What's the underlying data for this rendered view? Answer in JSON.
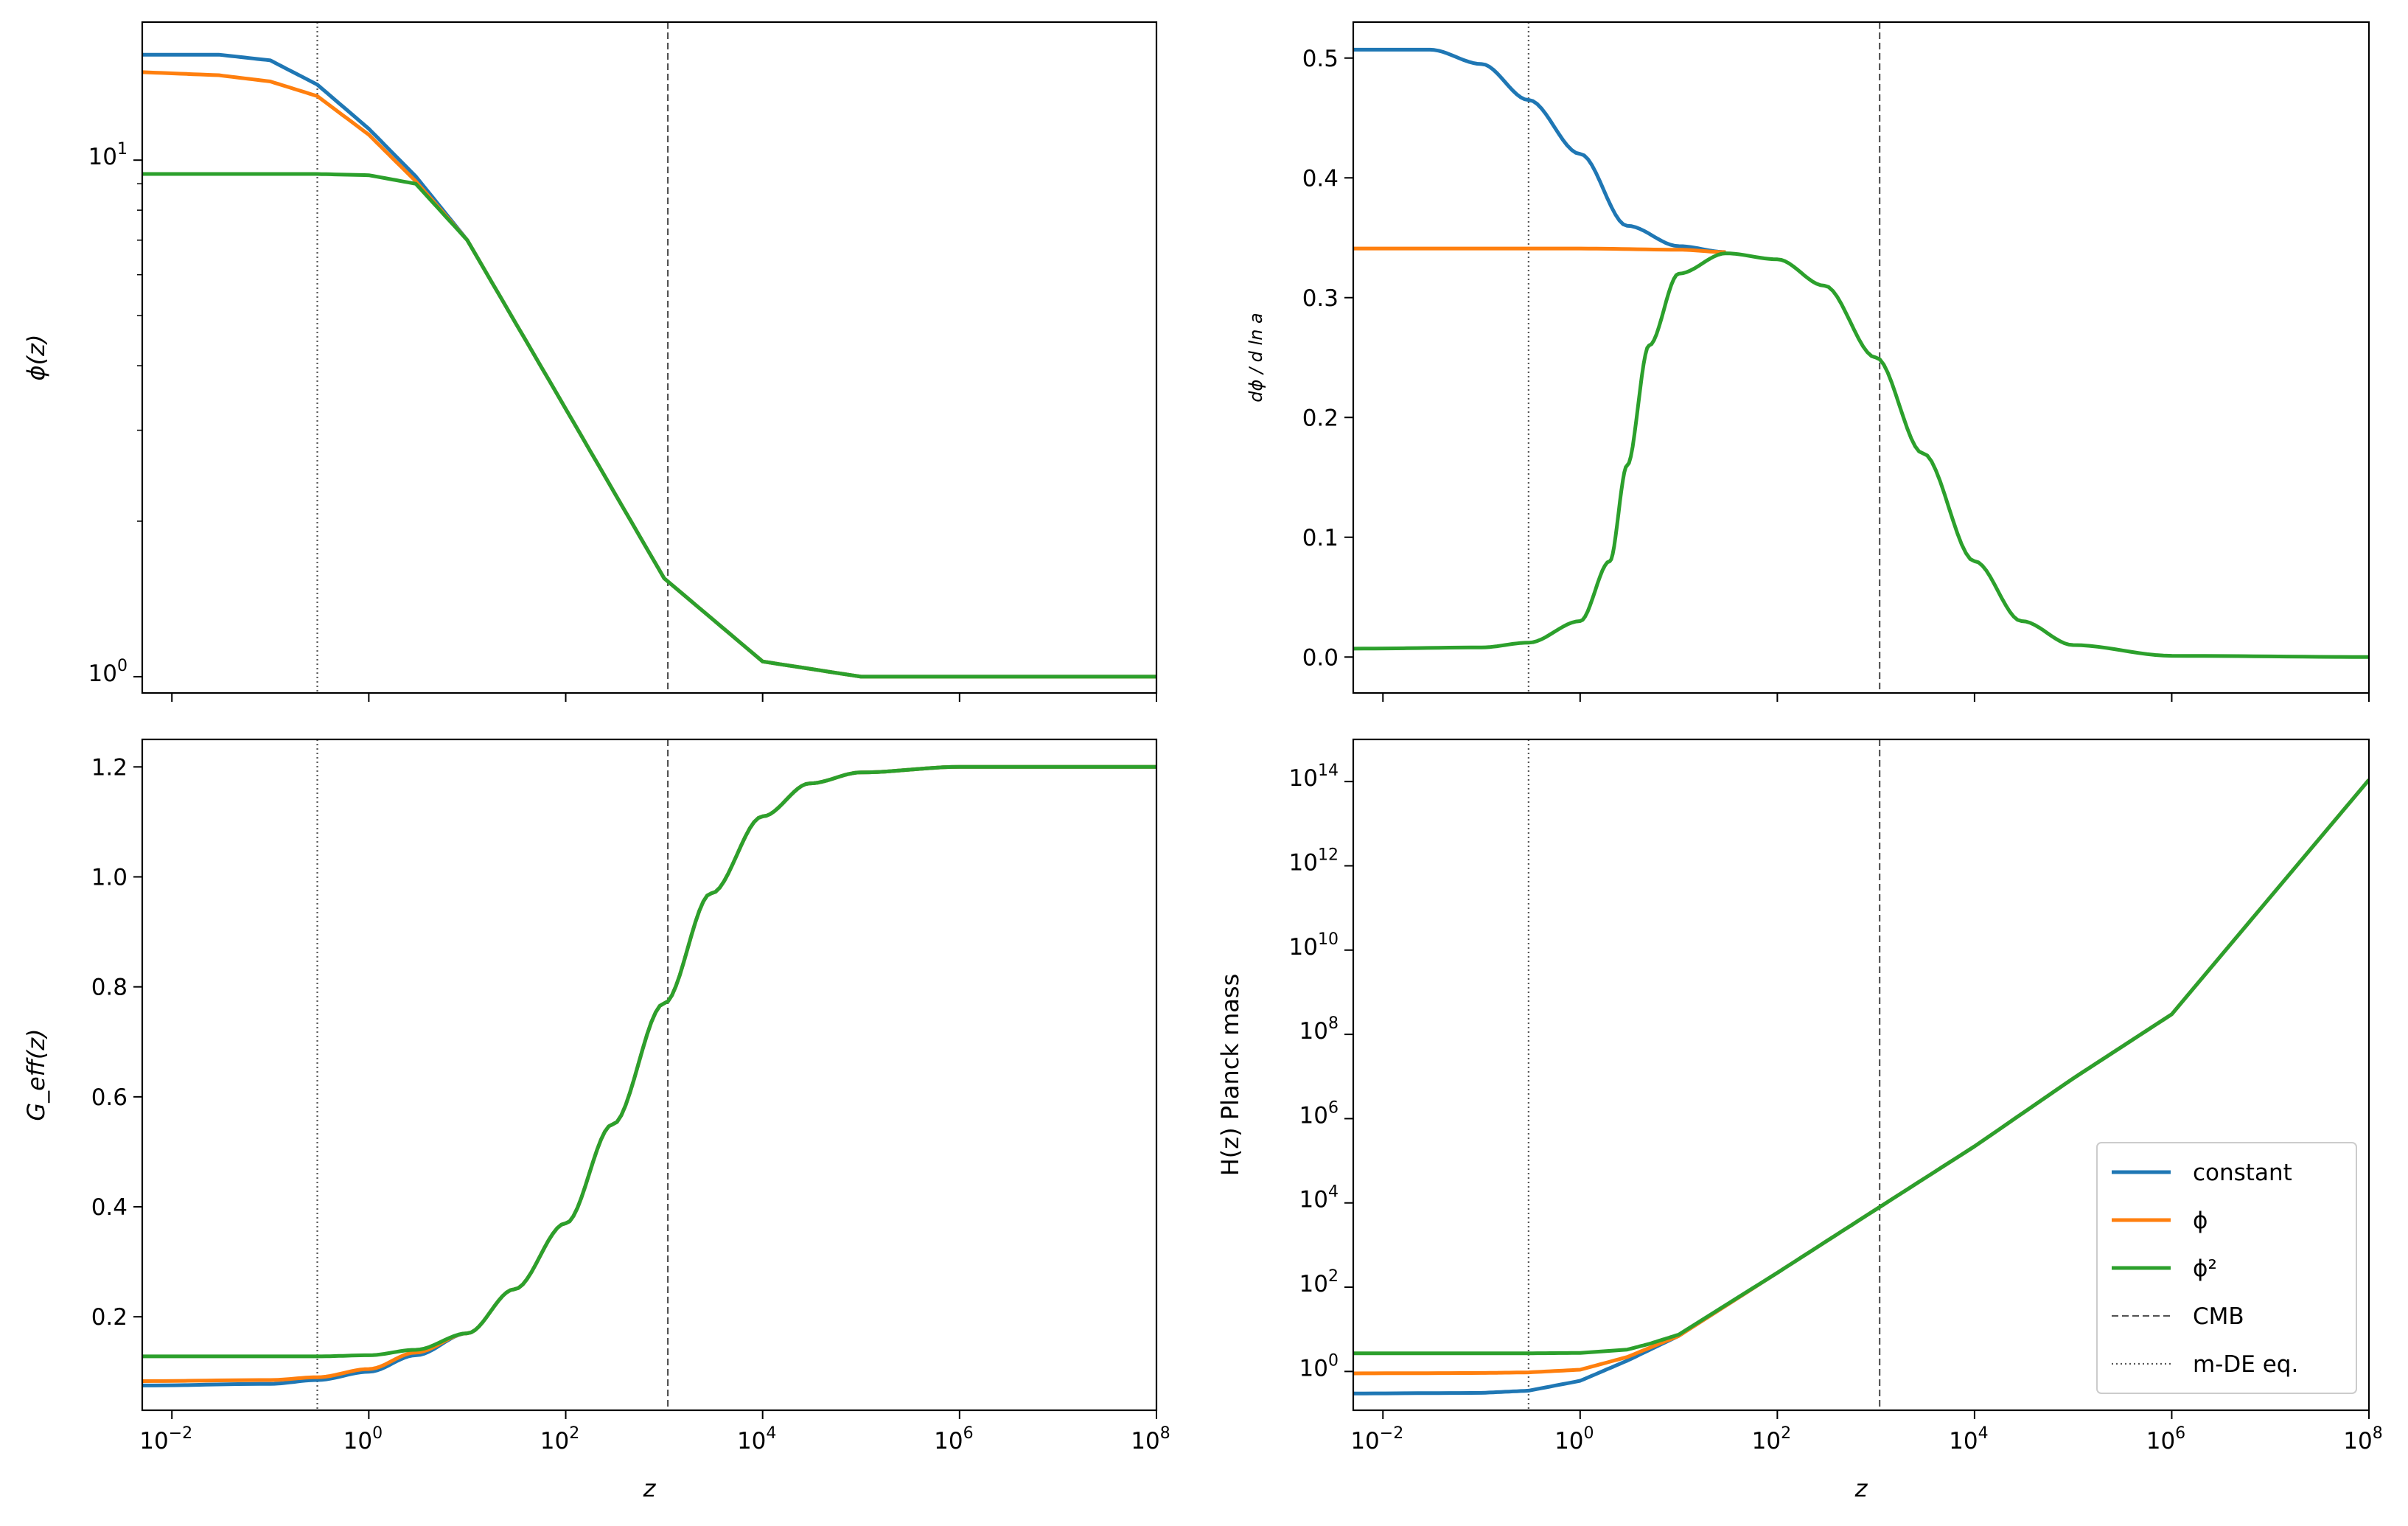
{
  "figure": {
    "xlabel": "z",
    "legend": {
      "placement": "lower right of bottom-right panel",
      "entries": [
        {
          "label": "constant",
          "style": "solid",
          "color": "#1f77b4"
        },
        {
          "label": "ϕ",
          "style": "solid",
          "color": "#ff7f0e"
        },
        {
          "label": "ϕ²",
          "style": "solid",
          "color": "#2ca02c"
        },
        {
          "label": "CMB",
          "style": "dashed",
          "color": "#555555"
        },
        {
          "label": "m-DE eq.",
          "style": "dotted",
          "color": "#555555"
        }
      ]
    },
    "reference_lines": [
      {
        "name": "CMB",
        "z": 1090,
        "style": "dashed"
      },
      {
        "name": "m-DE eq.",
        "z": 0.3,
        "style": "dotted"
      }
    ]
  },
  "chart_data": [
    {
      "id": "phi",
      "type": "line",
      "ylabel": "ϕ(z)",
      "xscale": "log",
      "yscale": "log",
      "xlim": [
        0.005,
        100000000
      ],
      "ylim": [
        0.93,
        18.5
      ],
      "xticks_shown": false,
      "yticks": [
        {
          "value": 1,
          "label": "10^0"
        },
        {
          "value": 10,
          "label": "10^1"
        }
      ],
      "series": [
        {
          "name": "constant",
          "color": "#1f77b4",
          "x": [
            0.005,
            0.03,
            0.1,
            0.3,
            1,
            3,
            10,
            100,
            1000,
            10000,
            100000,
            100000000
          ],
          "y": [
            16.0,
            16.0,
            15.6,
            14.0,
            11.5,
            9.3,
            7.0,
            3.3,
            1.55,
            1.07,
            1.0,
            1.0
          ]
        },
        {
          "name": "ϕ",
          "color": "#ff7f0e",
          "x": [
            0.005,
            0.03,
            0.1,
            0.3,
            1,
            3,
            10,
            100,
            1000,
            10000,
            100000,
            100000000
          ],
          "y": [
            14.8,
            14.6,
            14.2,
            13.3,
            11.2,
            9.1,
            7.0,
            3.3,
            1.55,
            1.07,
            1.0,
            1.0
          ]
        },
        {
          "name": "ϕ²",
          "color": "#2ca02c",
          "x": [
            0.005,
            0.1,
            0.3,
            1,
            3,
            10,
            100,
            1000,
            10000,
            100000,
            100000000
          ],
          "y": [
            9.4,
            9.4,
            9.4,
            9.35,
            9.0,
            7.0,
            3.3,
            1.55,
            1.07,
            1.0,
            1.0
          ]
        }
      ]
    },
    {
      "id": "dphi",
      "type": "line",
      "ylabel": "dϕ / d ln a",
      "xscale": "log",
      "yscale": "linear",
      "xlim": [
        0.005,
        100000000
      ],
      "ylim": [
        -0.03,
        0.53
      ],
      "xticks_shown": false,
      "yticks": [
        {
          "value": 0.0,
          "label": "0.0"
        },
        {
          "value": 0.1,
          "label": "0.1"
        },
        {
          "value": 0.2,
          "label": "0.2"
        },
        {
          "value": 0.3,
          "label": "0.3"
        },
        {
          "value": 0.4,
          "label": "0.4"
        },
        {
          "value": 0.5,
          "label": "0.5"
        }
      ],
      "series": [
        {
          "name": "constant",
          "color": "#1f77b4",
          "x": [
            0.005,
            0.03,
            0.1,
            0.3,
            1,
            3,
            10,
            30
          ],
          "y": [
            0.507,
            0.507,
            0.495,
            0.465,
            0.42,
            0.36,
            0.343,
            0.338
          ]
        },
        {
          "name": "ϕ",
          "color": "#ff7f0e",
          "x": [
            0.005,
            1,
            10,
            30
          ],
          "y": [
            0.341,
            0.341,
            0.34,
            0.338
          ]
        },
        {
          "name": "ϕ²",
          "color": "#2ca02c",
          "x": [
            0.005,
            0.1,
            0.3,
            1,
            2,
            3,
            5,
            10,
            30,
            100,
            300,
            1000,
            3000,
            10000,
            30000,
            100000,
            1000000,
            100000000
          ],
          "y": [
            0.007,
            0.008,
            0.012,
            0.03,
            0.08,
            0.16,
            0.26,
            0.32,
            0.337,
            0.332,
            0.31,
            0.25,
            0.17,
            0.08,
            0.03,
            0.01,
            0.001,
            0.0
          ]
        }
      ]
    },
    {
      "id": "geff",
      "type": "line",
      "ylabel": "G_eff(z)",
      "xscale": "log",
      "yscale": "linear",
      "xlim": [
        0.005,
        100000000
      ],
      "ylim": [
        0.03,
        1.25
      ],
      "xticks_shown": true,
      "xticks": [
        {
          "value": 0.01,
          "label": "10^−2"
        },
        {
          "value": 1,
          "label": "10^0"
        },
        {
          "value": 100,
          "label": "10^2"
        },
        {
          "value": 10000,
          "label": "10^4"
        },
        {
          "value": 1000000,
          "label": "10^6"
        },
        {
          "value": 100000000,
          "label": "10^8"
        }
      ],
      "yticks": [
        {
          "value": 0.2,
          "label": "0.2"
        },
        {
          "value": 0.4,
          "label": "0.4"
        },
        {
          "value": 0.6,
          "label": "0.6"
        },
        {
          "value": 0.8,
          "label": "0.8"
        },
        {
          "value": 1.0,
          "label": "1.0"
        },
        {
          "value": 1.2,
          "label": "1.2"
        }
      ],
      "series": [
        {
          "name": "constant",
          "color": "#1f77b4",
          "x": [
            0.005,
            0.1,
            0.3,
            1,
            3,
            10,
            30,
            100,
            300,
            1000,
            3000,
            10000,
            30000,
            100000,
            1000000,
            100000000
          ],
          "y": [
            0.075,
            0.078,
            0.085,
            0.1,
            0.13,
            0.17,
            0.25,
            0.37,
            0.55,
            0.77,
            0.97,
            1.11,
            1.17,
            1.19,
            1.2,
            1.2
          ]
        },
        {
          "name": "ϕ",
          "color": "#ff7f0e",
          "x": [
            0.005,
            0.1,
            0.3,
            1,
            3,
            10,
            30,
            100,
            300,
            1000,
            3000,
            10000,
            30000,
            100000,
            1000000,
            100000000
          ],
          "y": [
            0.083,
            0.085,
            0.09,
            0.105,
            0.135,
            0.17,
            0.25,
            0.37,
            0.55,
            0.77,
            0.97,
            1.11,
            1.17,
            1.19,
            1.2,
            1.2
          ]
        },
        {
          "name": "ϕ²",
          "color": "#2ca02c",
          "x": [
            0.005,
            0.1,
            0.3,
            1,
            3,
            10,
            30,
            100,
            300,
            1000,
            3000,
            10000,
            30000,
            100000,
            1000000,
            100000000
          ],
          "y": [
            0.128,
            0.128,
            0.128,
            0.13,
            0.14,
            0.17,
            0.25,
            0.37,
            0.55,
            0.77,
            0.97,
            1.11,
            1.17,
            1.19,
            1.2,
            1.2
          ]
        }
      ]
    },
    {
      "id": "hubble",
      "type": "line",
      "ylabel": "H(z) Planck mass",
      "xscale": "log",
      "yscale": "log",
      "xlim": [
        0.005,
        100000000
      ],
      "ylim": [
        0.12,
        1000000000000000
      ],
      "xticks_shown": true,
      "xticks": [
        {
          "value": 0.01,
          "label": "10^−2"
        },
        {
          "value": 1,
          "label": "10^0"
        },
        {
          "value": 100,
          "label": "10^2"
        },
        {
          "value": 10000,
          "label": "10^4"
        },
        {
          "value": 1000000,
          "label": "10^6"
        },
        {
          "value": 100000000,
          "label": "10^8"
        }
      ],
      "yticks": [
        {
          "value": 1,
          "label": "10^0"
        },
        {
          "value": 100,
          "label": "10^2"
        },
        {
          "value": 10000,
          "label": "10^4"
        },
        {
          "value": 1000000,
          "label": "10^6"
        },
        {
          "value": 100000000,
          "label": "10^8"
        },
        {
          "value": 10000000000,
          "label": "10^10"
        },
        {
          "value": 1000000000000,
          "label": "10^12"
        },
        {
          "value": 100000000000000,
          "label": "10^14"
        }
      ],
      "series": [
        {
          "name": "constant",
          "color": "#1f77b4",
          "x": [
            0.005,
            0.1,
            0.3,
            1,
            3,
            10,
            100,
            1000,
            10000,
            100000,
            1000000,
            100000000
          ],
          "y": [
            0.3,
            0.31,
            0.35,
            0.6,
            1.8,
            7,
            220,
            7000,
            220000,
            9000000,
            300000000,
            110000000000000
          ]
        },
        {
          "name": "ϕ",
          "color": "#ff7f0e",
          "x": [
            0.005,
            0.1,
            0.3,
            1,
            3,
            10,
            100,
            1000,
            10000,
            100000,
            1000000,
            100000000
          ],
          "y": [
            0.9,
            0.92,
            0.95,
            1.1,
            2.2,
            7,
            220,
            7000,
            220000,
            9000000,
            300000000,
            110000000000000
          ]
        },
        {
          "name": "ϕ²",
          "color": "#2ca02c",
          "x": [
            0.005,
            0.1,
            0.3,
            1,
            3,
            5,
            10,
            100,
            1000,
            10000,
            100000,
            1000000,
            100000000
          ],
          "y": [
            2.7,
            2.7,
            2.7,
            2.75,
            3.3,
            4.5,
            7.5,
            220,
            7000,
            220000,
            9000000,
            300000000,
            110000000000000
          ]
        }
      ]
    }
  ]
}
